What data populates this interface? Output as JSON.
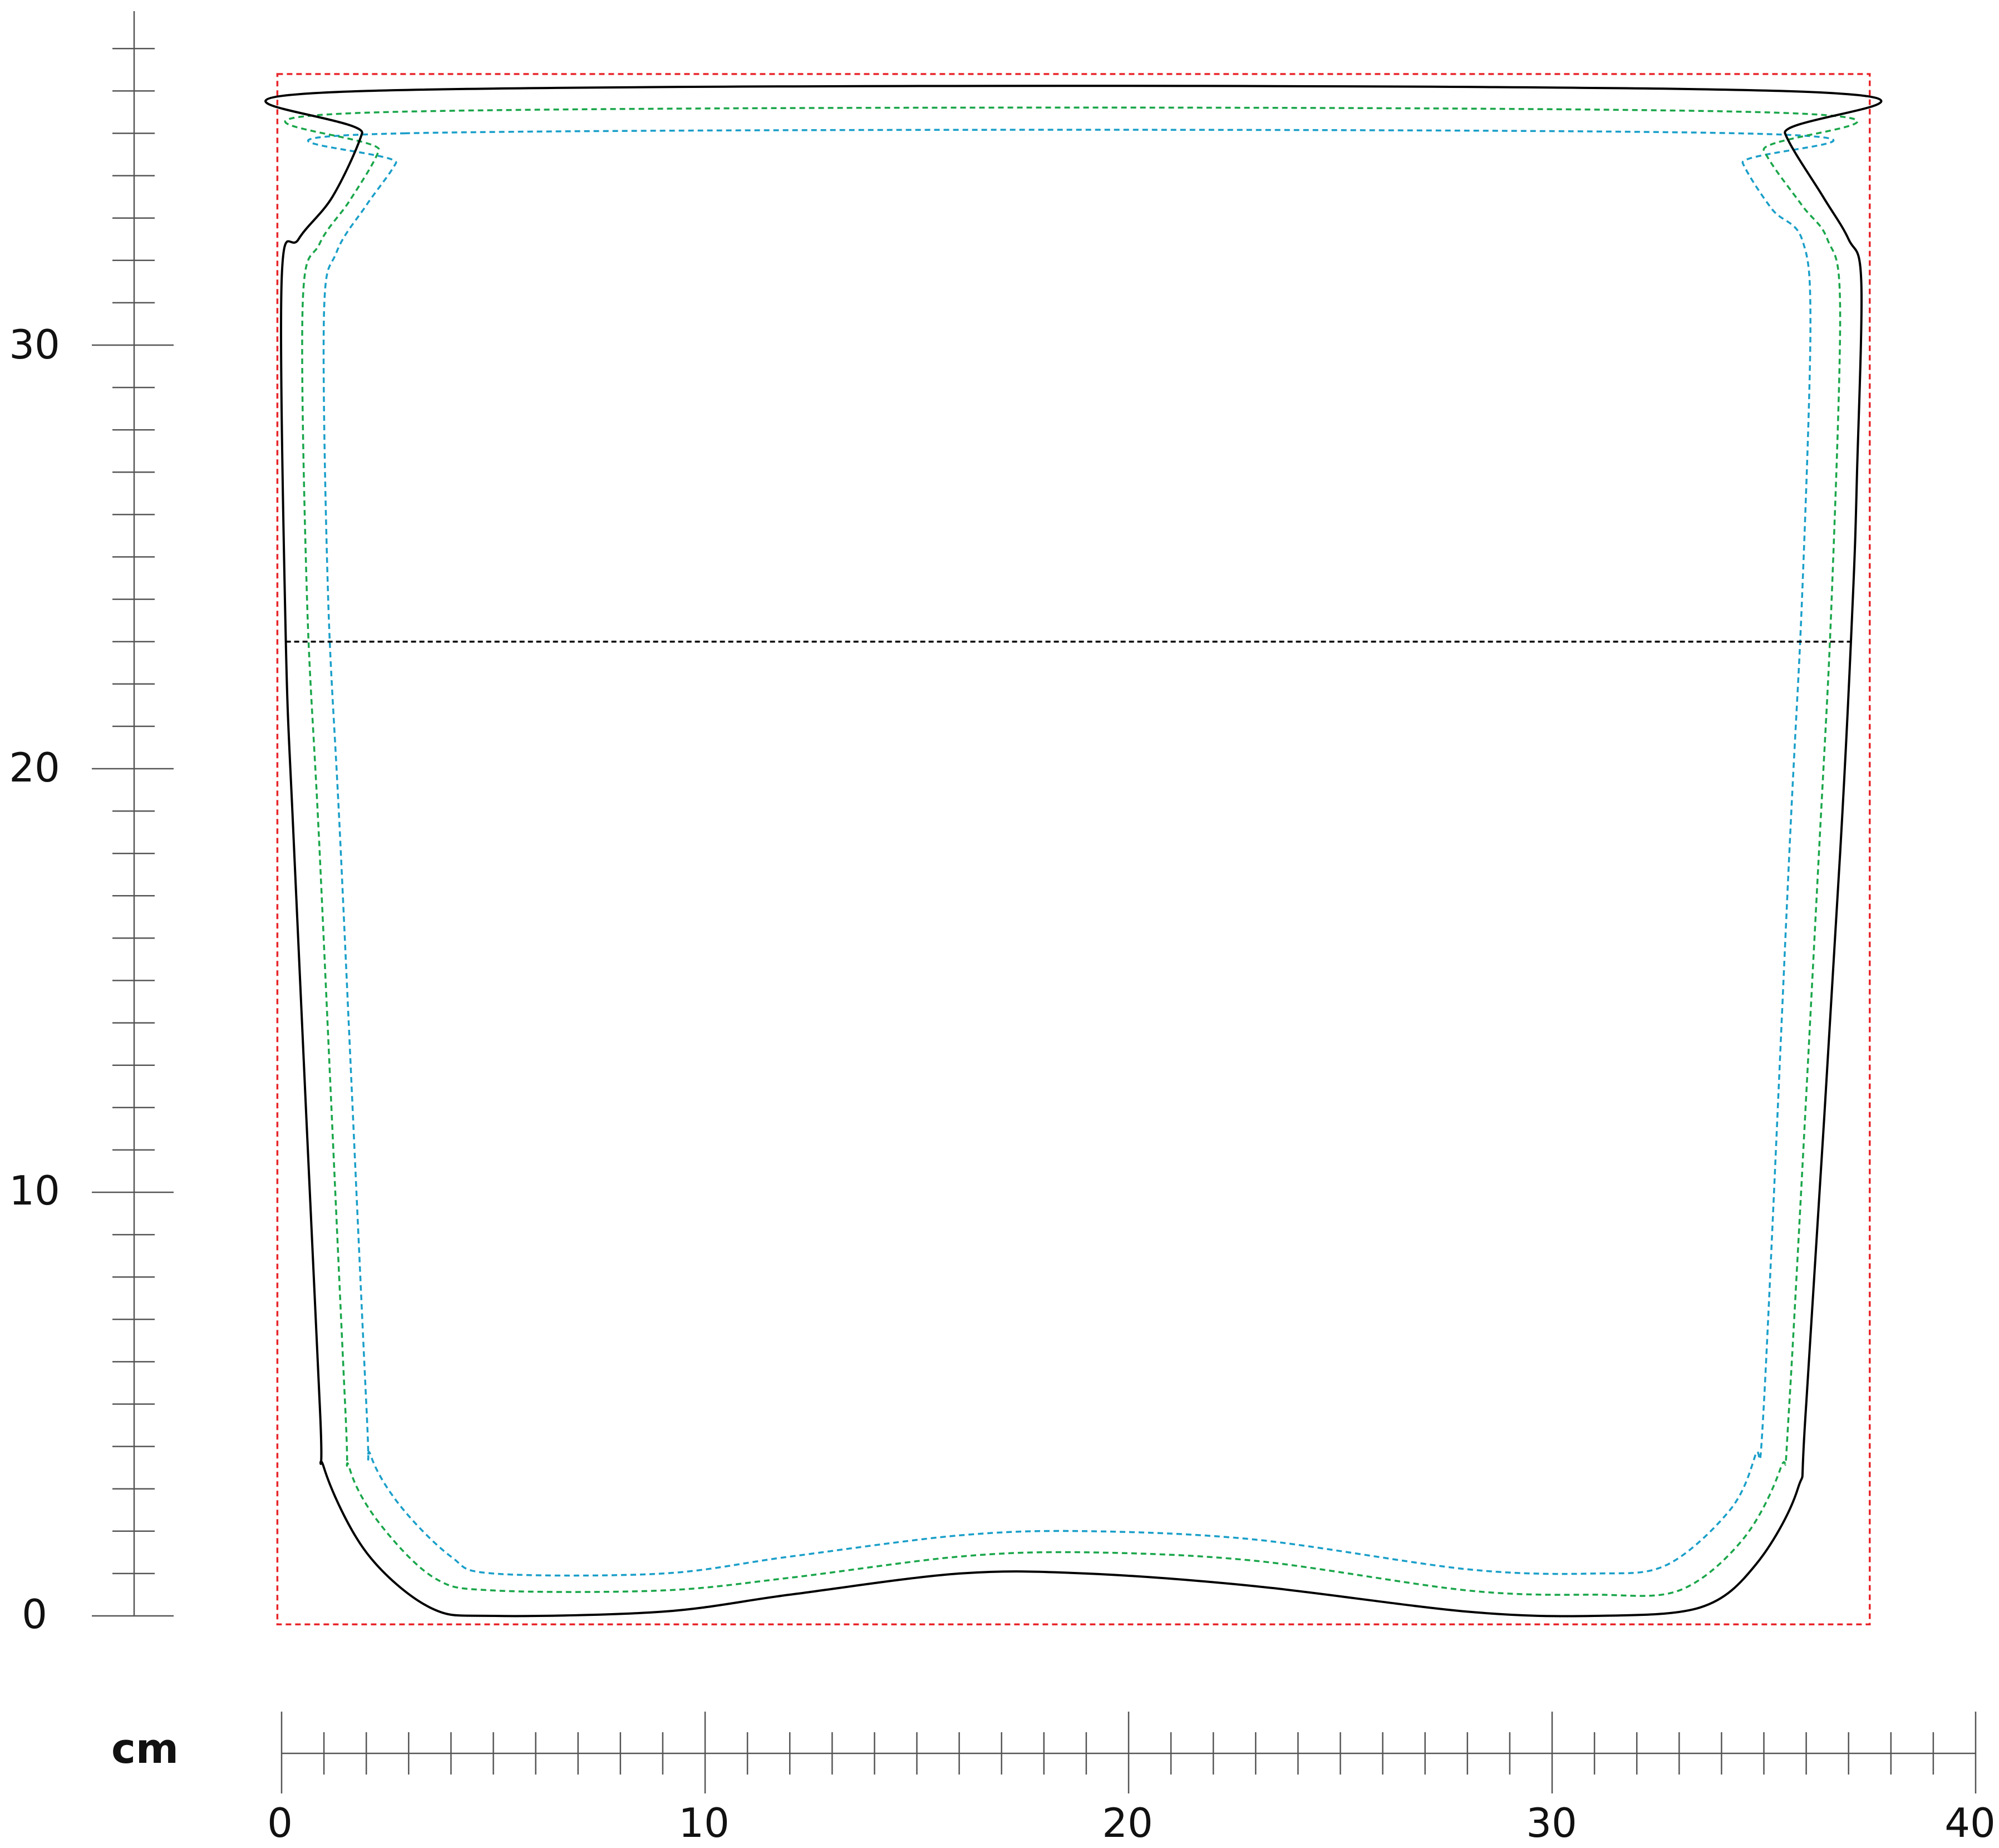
{
  "diagram": {
    "unit_label": "cm",
    "x_axis": {
      "min": 0,
      "max": 40,
      "major_step": 10,
      "minor_step": 1,
      "tick_labels": [
        "0",
        "10",
        "20",
        "30",
        "40"
      ]
    },
    "y_axis": {
      "min": 0,
      "max": 37,
      "major_step": 10,
      "minor_step": 1,
      "tick_labels": [
        "0",
        "10",
        "20",
        "30"
      ]
    },
    "colors": {
      "outline": "#000000",
      "bleed_box": "#e8262b",
      "green_line": "#1aa64a",
      "cyan_line": "#1a9fc9",
      "fold_line": "#000000",
      "ruler": "#555555"
    },
    "bleed_box_cm": {
      "x1": -0.1,
      "x2": 37.5,
      "y1": -0.2,
      "y2": 36.4
    },
    "fold_line_cm": {
      "y": 23.0,
      "x1": 0.1,
      "x2": 37.1
    },
    "outline_cm": [
      [
        2.0,
        36.0
      ],
      [
        35.4,
        36.0
      ],
      [
        35.5,
        35.0
      ],
      [
        36.4,
        33.5
      ],
      [
        37.0,
        32.5
      ],
      [
        37.3,
        31.5
      ],
      [
        37.2,
        27.0
      ],
      [
        37.1,
        24.0
      ],
      [
        36.8,
        18.0
      ],
      [
        36.0,
        5.0
      ],
      [
        35.8,
        3.0
      ],
      [
        34.8,
        1.2
      ],
      [
        33.5,
        0.2
      ],
      [
        31.0,
        0.0
      ],
      [
        28.0,
        0.1
      ],
      [
        23.0,
        0.7
      ],
      [
        19.0,
        1.0
      ],
      [
        16.0,
        1.0
      ],
      [
        12.0,
        0.5
      ],
      [
        9.0,
        0.1
      ],
      [
        5.0,
        0.0
      ],
      [
        3.5,
        0.2
      ],
      [
        2.0,
        1.5
      ],
      [
        1.0,
        3.5
      ],
      [
        0.9,
        5.0
      ],
      [
        0.3,
        18.0
      ],
      [
        0.1,
        23.0
      ],
      [
        0.0,
        31.5
      ],
      [
        0.4,
        32.5
      ],
      [
        1.2,
        33.5
      ],
      [
        1.9,
        35.0
      ]
    ],
    "green_line_cm": [
      [
        2.4,
        35.5
      ],
      [
        34.9,
        35.5
      ],
      [
        35.0,
        34.6
      ],
      [
        35.9,
        33.3
      ],
      [
        36.5,
        32.5
      ],
      [
        36.8,
        30.9
      ],
      [
        36.6,
        24.0
      ],
      [
        36.3,
        18.0
      ],
      [
        35.6,
        5.0
      ],
      [
        35.4,
        3.5
      ],
      [
        34.5,
        1.8
      ],
      [
        33.0,
        0.6
      ],
      [
        31.0,
        0.5
      ],
      [
        28.0,
        0.6
      ],
      [
        23.0,
        1.3
      ],
      [
        19.0,
        1.5
      ],
      [
        16.0,
        1.4
      ],
      [
        12.0,
        0.9
      ],
      [
        9.0,
        0.6
      ],
      [
        5.0,
        0.6
      ],
      [
        3.6,
        0.9
      ],
      [
        2.3,
        2.2
      ],
      [
        1.6,
        3.5
      ],
      [
        1.5,
        5.0
      ],
      [
        0.9,
        18.0
      ],
      [
        0.6,
        24.0
      ],
      [
        0.5,
        31.0
      ],
      [
        0.9,
        32.4
      ],
      [
        1.6,
        33.4
      ],
      [
        2.3,
        34.6
      ]
    ],
    "cyan_line_cm": [
      [
        2.9,
        35.0
      ],
      [
        34.4,
        35.0
      ],
      [
        34.5,
        34.3
      ],
      [
        35.2,
        33.2
      ],
      [
        35.9,
        32.5
      ],
      [
        36.1,
        30.5
      ],
      [
        35.9,
        24.0
      ],
      [
        35.6,
        18.0
      ],
      [
        35.0,
        5.0
      ],
      [
        34.8,
        3.8
      ],
      [
        34.2,
        2.5
      ],
      [
        32.7,
        1.2
      ],
      [
        31.0,
        1.0
      ],
      [
        28.0,
        1.1
      ],
      [
        23.0,
        1.8
      ],
      [
        19.0,
        2.0
      ],
      [
        16.0,
        1.9
      ],
      [
        12.0,
        1.4
      ],
      [
        9.0,
        1.0
      ],
      [
        5.0,
        1.0
      ],
      [
        4.0,
        1.4
      ],
      [
        2.8,
        2.6
      ],
      [
        2.1,
        3.8
      ],
      [
        2.0,
        5.0
      ],
      [
        1.4,
        18.0
      ],
      [
        1.1,
        24.0
      ],
      [
        1.0,
        30.7
      ],
      [
        1.3,
        32.2
      ],
      [
        2.0,
        33.3
      ],
      [
        2.7,
        34.3
      ]
    ]
  }
}
